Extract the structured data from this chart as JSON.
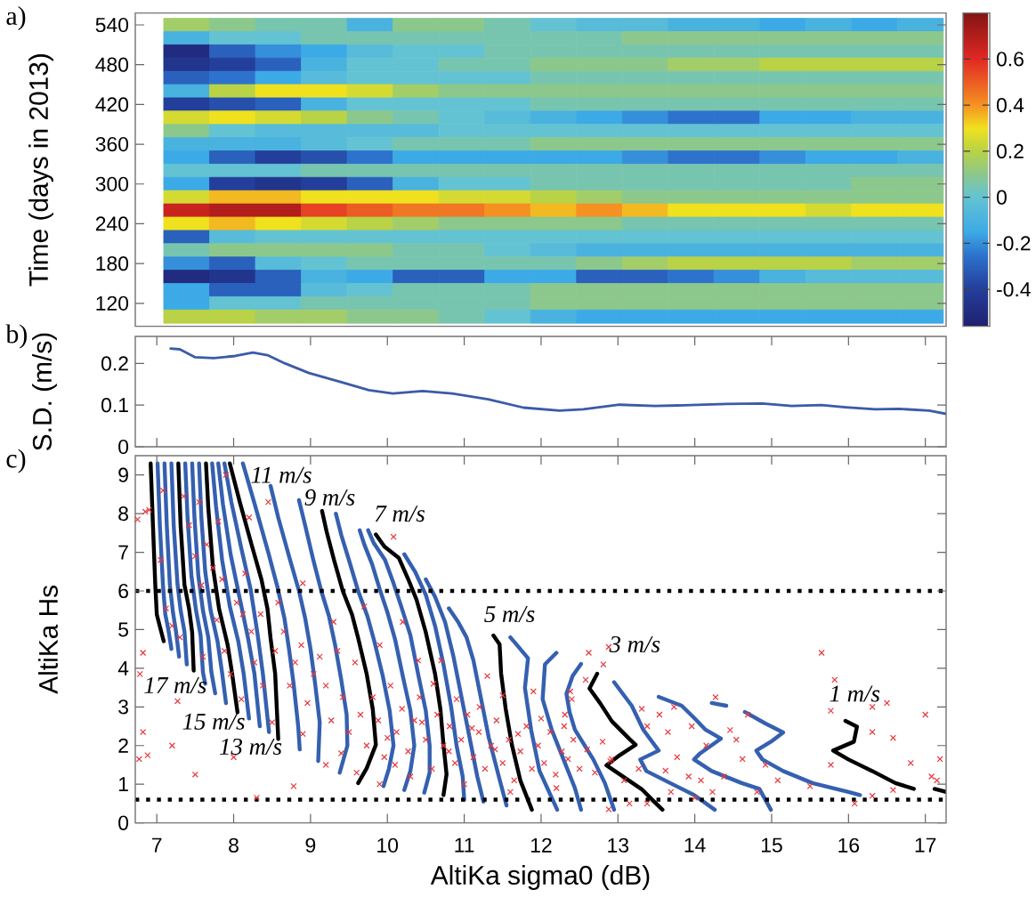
{
  "chart_data": [
    {
      "type": "heatmap",
      "ylabel": "Time (days in 2013)",
      "annotations": [
        "a)"
      ],
      "categories": [
        null,
        null,
        null,
        null,
        null,
        null,
        null,
        null,
        null,
        null,
        null,
        null,
        null,
        null,
        null,
        null,
        null
      ],
      "y_categories": [
        "540",
        null,
        null,
        "480",
        null,
        null,
        "420",
        null,
        null,
        "360",
        null,
        null,
        "300",
        null,
        null,
        "240",
        null,
        null,
        "180",
        null,
        null,
        "120",
        null
      ],
      "cells": [
        [
          0.15,
          0.1,
          0.05,
          0.05,
          -0.1,
          0.1,
          0.1,
          0.05,
          0.0,
          -0.05,
          -0.05,
          -0.1,
          -0.1,
          -0.15,
          -0.1,
          -0.15,
          -0.1
        ],
        [
          -0.1,
          0.0,
          0.0,
          0.05,
          0.05,
          0.05,
          0.05,
          0.05,
          0.05,
          0.05,
          0.1,
          0.1,
          0.1,
          0.1,
          0.1,
          0.1,
          0.1
        ],
        [
          -0.5,
          -0.3,
          -0.2,
          -0.15,
          -0.05,
          0.0,
          0.0,
          0.05,
          0.05,
          0.05,
          0.05,
          0.05,
          0.05,
          0.05,
          0.05,
          0.05,
          0.05
        ],
        [
          -0.45,
          -0.4,
          -0.3,
          -0.1,
          0.0,
          0.0,
          0.05,
          0.05,
          0.1,
          0.1,
          0.1,
          0.15,
          0.15,
          0.2,
          0.2,
          0.2,
          0.2
        ],
        [
          -0.3,
          -0.25,
          -0.15,
          -0.05,
          0.0,
          0.0,
          0.0,
          0.0,
          0.05,
          0.05,
          0.05,
          0.05,
          0.05,
          0.05,
          0.05,
          0.05,
          0.05
        ],
        [
          -0.1,
          0.2,
          0.3,
          0.3,
          0.25,
          0.15,
          0.1,
          0.1,
          0.1,
          0.1,
          0.1,
          0.1,
          0.1,
          0.1,
          0.1,
          0.1,
          0.1
        ],
        [
          -0.4,
          -0.35,
          -0.3,
          -0.1,
          0.0,
          0.0,
          0.0,
          0.0,
          0.05,
          0.05,
          0.05,
          0.05,
          0.05,
          0.05,
          0.05,
          0.05,
          0.05
        ],
        [
          0.25,
          0.3,
          0.25,
          0.2,
          0.1,
          0.05,
          0.0,
          -0.05,
          -0.1,
          -0.15,
          -0.2,
          -0.25,
          -0.25,
          -0.15,
          -0.15,
          -0.1,
          -0.1
        ],
        [
          0.1,
          0.0,
          -0.05,
          -0.05,
          -0.05,
          -0.05,
          0.0,
          0.0,
          0.0,
          0.0,
          0.0,
          0.0,
          0.0,
          0.0,
          0.0,
          0.0,
          0.0
        ],
        [
          -0.1,
          -0.1,
          -0.1,
          -0.05,
          0.0,
          0.05,
          0.05,
          0.05,
          0.1,
          0.1,
          0.1,
          0.1,
          0.1,
          0.1,
          0.1,
          0.1,
          0.1
        ],
        [
          -0.15,
          -0.3,
          -0.4,
          -0.35,
          -0.25,
          -0.15,
          -0.15,
          -0.15,
          -0.15,
          -0.15,
          -0.2,
          -0.25,
          -0.25,
          -0.2,
          -0.15,
          -0.15,
          -0.1
        ],
        [
          0.0,
          0.0,
          0.0,
          0.05,
          0.05,
          0.05,
          0.05,
          0.05,
          0.05,
          0.05,
          0.05,
          0.05,
          0.05,
          0.05,
          0.05,
          0.05,
          0.05
        ],
        [
          -0.15,
          -0.4,
          -0.45,
          -0.4,
          -0.3,
          -0.1,
          0.0,
          0.0,
          0.05,
          0.05,
          0.05,
          0.05,
          0.05,
          0.05,
          0.05,
          0.1,
          0.1
        ],
        [
          0.25,
          0.35,
          0.35,
          0.3,
          0.3,
          0.3,
          0.25,
          0.25,
          0.2,
          0.15,
          0.1,
          0.1,
          0.1,
          0.1,
          0.1,
          0.1,
          0.1
        ],
        [
          0.65,
          0.7,
          0.7,
          0.55,
          0.5,
          0.45,
          0.45,
          0.4,
          0.35,
          0.4,
          0.35,
          0.3,
          0.3,
          0.3,
          0.25,
          0.3,
          0.3
        ],
        [
          0.3,
          0.35,
          0.3,
          0.25,
          0.2,
          0.15,
          0.1,
          0.1,
          0.1,
          0.1,
          0.05,
          0.05,
          0.05,
          0.05,
          0.05,
          0.05,
          0.05
        ],
        [
          -0.3,
          -0.05,
          0.0,
          0.0,
          0.0,
          0.0,
          0.0,
          0.0,
          0.0,
          0.0,
          0.0,
          0.0,
          0.0,
          0.0,
          0.0,
          0.0,
          0.0
        ],
        [
          0.05,
          0.1,
          0.1,
          0.1,
          0.1,
          0.05,
          0.05,
          0.0,
          -0.05,
          -0.1,
          -0.1,
          -0.1,
          -0.1,
          -0.1,
          -0.1,
          -0.1,
          -0.1
        ],
        [
          -0.2,
          -0.3,
          -0.05,
          0.0,
          0.05,
          0.05,
          0.05,
          0.05,
          0.05,
          0.1,
          0.15,
          0.2,
          0.2,
          0.2,
          0.2,
          0.15,
          0.15
        ],
        [
          -0.5,
          -0.45,
          -0.3,
          -0.1,
          -0.15,
          -0.3,
          -0.3,
          -0.15,
          -0.15,
          -0.3,
          -0.3,
          -0.25,
          -0.2,
          -0.1,
          -0.05,
          -0.05,
          -0.05
        ],
        [
          -0.15,
          -0.3,
          -0.3,
          -0.05,
          0.0,
          0.05,
          0.05,
          0.05,
          0.1,
          0.1,
          0.1,
          0.1,
          0.1,
          0.1,
          0.1,
          0.1,
          0.1
        ],
        [
          -0.15,
          0.0,
          0.0,
          0.05,
          0.05,
          0.05,
          0.05,
          0.05,
          0.1,
          0.1,
          0.1,
          0.1,
          0.1,
          0.1,
          0.1,
          0.1,
          0.1
        ],
        [
          0.2,
          0.2,
          0.15,
          0.15,
          0.1,
          0.1,
          0.05,
          0.0,
          -0.1,
          -0.15,
          -0.15,
          -0.15,
          -0.15,
          -0.15,
          -0.15,
          -0.15,
          -0.15
        ]
      ],
      "clim": [
        -0.56,
        0.8
      ],
      "cticks": [
        -0.4,
        -0.2,
        0,
        0.2,
        0.4,
        0.6
      ]
    },
    {
      "type": "line",
      "ylabel": "S.D. (m/s)",
      "annotations": [
        "b)"
      ],
      "color": "#3a5ba8",
      "x": [
        7.18,
        7.3,
        7.5,
        7.74,
        8.02,
        8.25,
        8.44,
        8.67,
        8.98,
        9.37,
        9.76,
        10.07,
        10.46,
        10.84,
        11.31,
        11.77,
        12.24,
        12.55,
        13.02,
        13.48,
        13.95,
        14.41,
        14.88,
        15.26,
        15.65,
        15.96,
        16.35,
        16.66,
        17.05,
        17.27
      ],
      "values": [
        0.236,
        0.234,
        0.215,
        0.213,
        0.218,
        0.226,
        0.22,
        0.2,
        0.177,
        0.157,
        0.136,
        0.128,
        0.134,
        0.128,
        0.114,
        0.094,
        0.087,
        0.09,
        0.101,
        0.098,
        0.1,
        0.103,
        0.104,
        0.098,
        0.1,
        0.095,
        0.09,
        0.091,
        0.087,
        0.079
      ],
      "xlim": [
        6.72,
        17.27
      ],
      "ylim": [
        0,
        0.265
      ],
      "xticks": [
        7,
        8,
        9,
        10,
        11,
        12,
        13,
        14,
        15,
        16,
        17
      ],
      "yticks": [
        0,
        0.1,
        0.2
      ],
      "tick_labels": "y"
    },
    {
      "type": "line",
      "xlabel": "AltiKa sigma0 (dB)",
      "ylabel": "AltiKa Hs",
      "annotations": [
        "c)",
        "11 m/s",
        "9 m/s",
        "7 m/s",
        "5 m/s",
        "3 m/s",
        "17 m/s",
        "1 m/s",
        "15 m/s",
        "13 m/s"
      ],
      "series": [
        {
          "color": "#000000",
          "x": [
            6.92,
            6.95,
            6.98,
            7.0,
            7.04,
            7.09
          ],
          "values": [
            9.3,
            7.69,
            6.16,
            5.39,
            5.08,
            4.7
          ]
        },
        {
          "color": "#3560b0",
          "x": [
            7.01,
            7.04,
            7.08,
            7.11,
            7.15,
            7.19
          ],
          "values": [
            9.3,
            7.69,
            6.16,
            5.4,
            5.0,
            4.5
          ]
        },
        {
          "color": "#3560b0",
          "x": [
            7.1,
            7.13,
            7.17,
            7.21,
            7.25,
            7.29
          ],
          "values": [
            9.3,
            7.69,
            6.16,
            5.45,
            4.95,
            4.3
          ]
        },
        {
          "color": "#3560b0",
          "x": [
            7.19,
            7.22,
            7.27,
            7.31,
            7.36,
            7.39
          ],
          "values": [
            9.3,
            7.69,
            6.16,
            5.5,
            4.95,
            4.1
          ]
        },
        {
          "color": "#000000",
          "x": [
            7.28,
            7.31,
            7.36,
            7.42,
            7.46,
            7.48
          ],
          "values": [
            9.3,
            7.69,
            6.16,
            5.54,
            4.93,
            3.94
          ]
        },
        {
          "color": "#3560b0",
          "x": [
            7.37,
            7.4,
            7.45,
            7.51,
            7.57,
            7.6,
            7.63
          ],
          "values": [
            9.3,
            7.9,
            6.4,
            5.5,
            4.85,
            3.9,
            3.6
          ]
        },
        {
          "color": "#3560b0",
          "x": [
            7.46,
            7.49,
            7.54,
            7.6,
            7.67,
            7.71,
            7.76
          ],
          "values": [
            9.3,
            7.9,
            6.4,
            5.5,
            4.8,
            3.9,
            3.35
          ]
        },
        {
          "color": "#3560b0",
          "x": [
            7.55,
            7.58,
            7.63,
            7.7,
            7.79,
            7.85,
            7.9
          ],
          "values": [
            9.3,
            7.9,
            6.5,
            5.5,
            4.7,
            3.88,
            3.1
          ]
        },
        {
          "color": "#000000",
          "x": [
            7.64,
            7.67,
            7.73,
            7.81,
            7.92,
            7.98,
            8.05
          ],
          "values": [
            9.3,
            8.15,
            6.62,
            5.54,
            4.62,
            3.86,
            2.86
          ]
        },
        {
          "color": "#3560b0",
          "x": [
            7.72,
            7.77,
            7.85,
            7.95,
            8.06,
            8.13,
            8.2
          ],
          "values": [
            9.3,
            8.2,
            6.8,
            5.6,
            4.7,
            3.86,
            2.7
          ]
        },
        {
          "color": "#3560b0",
          "x": [
            7.8,
            7.86,
            7.96,
            8.08,
            8.19,
            8.27,
            8.34
          ],
          "values": [
            9.3,
            8.25,
            6.95,
            5.8,
            4.75,
            3.86,
            2.5
          ]
        },
        {
          "color": "#3560b0",
          "x": [
            7.88,
            7.97,
            8.1,
            8.22,
            8.31,
            8.38,
            8.46
          ],
          "values": [
            9.3,
            8.3,
            7.1,
            6.05,
            4.9,
            3.86,
            2.35
          ]
        },
        {
          "color": "#000000",
          "x": [
            7.95,
            8.08,
            8.23,
            8.36,
            8.44,
            8.48,
            8.54,
            8.58
          ],
          "values": [
            9.3,
            8.3,
            7.22,
            6.31,
            5.54,
            4.78,
            3.86,
            2.17
          ]
        },
        {
          "color": "#3560b0",
          "x": [
            8.12,
            8.28,
            8.45,
            8.57,
            8.66,
            8.72,
            8.78,
            8.84,
            8.86
          ],
          "values": [
            9.3,
            8.2,
            7.0,
            6.1,
            5.3,
            4.5,
            3.6,
            2.5,
            1.9
          ]
        },
        {
          "color": "#3560b0",
          "x": [
            8.48,
            8.58,
            8.72,
            8.85,
            8.93,
            9.0,
            9.06,
            9.12,
            9.1
          ],
          "values": [
            8.72,
            7.9,
            6.9,
            6.0,
            5.3,
            4.5,
            3.6,
            2.6,
            1.6
          ]
        },
        {
          "color": "#3560b0",
          "x": [
            8.85,
            8.93,
            9.03,
            9.14,
            9.24,
            9.32,
            9.4,
            9.47,
            9.48,
            9.38
          ],
          "values": [
            8.35,
            7.7,
            6.85,
            6.0,
            5.35,
            4.6,
            3.7,
            2.8,
            2.0,
            1.3
          ]
        },
        {
          "color": "#000000",
          "x": [
            9.15,
            9.21,
            9.31,
            9.42,
            9.54,
            9.62,
            9.73,
            9.81,
            9.85,
            9.73,
            9.62
          ],
          "values": [
            8.07,
            7.53,
            6.77,
            6.0,
            5.39,
            4.78,
            3.86,
            2.94,
            2.02,
            1.41,
            1.03
          ]
        },
        {
          "color": "#3560b0",
          "x": [
            9.33,
            9.4,
            9.5,
            9.62,
            9.74,
            9.83,
            9.94,
            10.03,
            10.08,
            10.02,
            9.95
          ],
          "values": [
            8.0,
            7.45,
            6.8,
            6.0,
            5.35,
            4.7,
            3.8,
            2.9,
            2.0,
            1.4,
            0.95
          ]
        },
        {
          "color": "#3560b0",
          "x": [
            9.64,
            9.7,
            9.8,
            9.9,
            10.0,
            10.1,
            10.2,
            10.3,
            10.35,
            10.3,
            10.22
          ],
          "values": [
            7.57,
            7.2,
            6.7,
            6.05,
            5.45,
            4.75,
            3.8,
            2.9,
            2.0,
            1.35,
            0.85
          ]
        },
        {
          "color": "#3560b0",
          "x": [
            9.75,
            9.82,
            9.97,
            10.08,
            10.18,
            10.3,
            10.4,
            10.5,
            10.55,
            10.55,
            10.48
          ],
          "values": [
            7.57,
            7.25,
            6.8,
            6.2,
            5.6,
            4.85,
            3.85,
            2.9,
            2.0,
            1.3,
            0.78
          ]
        },
        {
          "color": "#000000",
          "x": [
            9.85,
            9.96,
            10.15,
            10.27,
            10.38,
            10.5,
            10.62,
            10.69,
            10.73,
            10.77,
            10.73
          ],
          "values": [
            7.46,
            7.15,
            6.85,
            6.31,
            5.77,
            4.93,
            3.86,
            2.94,
            2.02,
            1.26,
            0.72
          ]
        },
        {
          "color": "#3560b0",
          "x": [
            10.22,
            10.36,
            10.5,
            10.62,
            10.73,
            10.83,
            10.9,
            10.98,
            11.0
          ],
          "values": [
            6.95,
            6.5,
            5.9,
            5.1,
            4.1,
            3.0,
            2.0,
            1.2,
            0.6
          ]
        },
        {
          "color": "#3560b0",
          "x": [
            10.5,
            10.62,
            10.75,
            10.86,
            10.97,
            11.07,
            11.17,
            11.25
          ],
          "values": [
            6.3,
            5.85,
            5.2,
            4.3,
            3.2,
            2.2,
            1.2,
            0.55
          ]
        },
        {
          "color": "#3560b0",
          "x": [
            10.8,
            10.92,
            11.03,
            11.12,
            11.22,
            11.32,
            11.45,
            11.55
          ],
          "values": [
            5.55,
            5.2,
            4.8,
            4.2,
            3.2,
            2.2,
            1.2,
            0.45
          ]
        },
        {
          "color": "#000000",
          "x": [
            11.38,
            11.46,
            11.48,
            11.54,
            11.62,
            11.73,
            11.88
          ],
          "values": [
            4.85,
            4.62,
            3.86,
            2.94,
            2.02,
            1.1,
            0.34
          ]
        },
        {
          "color": "#3560b0",
          "x": [
            11.6,
            11.67,
            11.83,
            11.79,
            11.87,
            11.98,
            12.21
          ],
          "values": [
            4.8,
            4.64,
            4.26,
            3.49,
            2.41,
            1.34,
            0.34
          ]
        },
        {
          "color": "#3560b0",
          "x": [
            12.2,
            12.05,
            12.02,
            12.14,
            12.29,
            12.44,
            12.52
          ],
          "values": [
            4.4,
            4.1,
            3.2,
            2.4,
            1.65,
            0.9,
            0.34
          ]
        },
        {
          "color": "#3560b0",
          "x": [
            12.52,
            12.41,
            12.33,
            12.37,
            12.44,
            12.68,
            12.83,
            12.95
          ],
          "values": [
            4.11,
            3.8,
            3.34,
            2.87,
            2.41,
            1.64,
            1.03,
            0.34
          ]
        },
        {
          "color": "#000000",
          "x": [
            12.73,
            12.63,
            12.77,
            12.92,
            13.15,
            13.23,
            13.0,
            12.85,
            13.08,
            13.31,
            13.46,
            13.58
          ],
          "values": [
            3.86,
            3.48,
            3.09,
            2.63,
            2.17,
            2.02,
            1.72,
            1.49,
            1.18,
            0.87,
            0.57,
            0.34
          ]
        },
        {
          "color": "#3560b0",
          "x": [
            12.95,
            13.18,
            13.33,
            13.53,
            13.29,
            13.37,
            13.68,
            13.99,
            14.26
          ],
          "values": [
            3.64,
            3.03,
            2.41,
            1.87,
            1.64,
            1.34,
            1.03,
            0.72,
            0.34
          ]
        },
        {
          "color": "#3560b0",
          "x": [
            13.53,
            13.83,
            13.99,
            14.14,
            14.34,
            14.07,
            13.99,
            14.22,
            14.61,
            14.84,
            14.99
          ],
          "values": [
            3.26,
            3.03,
            2.72,
            2.41,
            2.18,
            1.8,
            1.64,
            1.34,
            1.03,
            0.88,
            0.34
          ]
        },
        {
          "color": "#3560b0",
          "x": [
            14.22,
            14.41,
            14.5,
            14.65,
            14.92,
            15.15,
            14.99,
            14.8,
            14.88,
            15.15,
            15.53,
            16.0,
            16.15
          ],
          "values": [
            3.1,
            3.03,
            null,
            2.87,
            2.57,
            2.34,
            2.1,
            1.87,
            1.64,
            1.34,
            1.03,
            0.8,
            0.72
          ]
        },
        {
          "color": "#000000",
          "x": [
            15.96,
            16.11,
            16.07,
            15.8,
            16.0,
            16.31,
            16.61,
            16.85
          ],
          "values": [
            2.64,
            2.49,
            2.1,
            1.87,
            1.64,
            1.34,
            1.03,
            0.88
          ]
        },
        {
          "color": "#000000",
          "x": [
            17.12,
            17.27
          ],
          "values": [
            0.88,
            0.8
          ]
        },
        {
          "type": "scatter",
          "color": "#e8383d",
          "marker": "cross",
          "x": [
            6.75,
            6.85,
            6.9,
            6.82,
            6.78,
            6.82,
            6.77,
            6.88,
            7.2,
            7.5,
            7.27,
            8.0,
            8.3,
            8.78,
            10.08,
            7.08,
            7.55,
            7.9,
            8.45,
            8.2,
            7.05,
            7.12,
            7.2,
            7.35,
            7.42,
            7.5,
            7.58,
            7.65,
            7.73,
            7.78,
            7.85,
            7.88,
            7.96,
            8.04,
            8.12,
            8.15,
            8.23,
            8.27,
            8.35,
            8.38,
            8.54,
            8.58,
            8.65,
            8.73,
            8.8,
            8.88,
            8.96,
            9.04,
            9.12,
            9.2,
            9.35,
            9.42,
            9.58,
            9.3,
            8.9,
            9.7,
            10.2,
            9.9,
            10.4,
            7.3,
            7.6,
            8.1,
            8.5,
            8.9,
            7.8,
            9.27,
            9.5,
            9.65,
            9.73,
            9.81,
            9.88,
            9.96,
            10.04,
            10.12,
            10.19,
            10.27,
            10.35,
            10.42,
            10.5,
            10.58,
            10.65,
            10.73,
            10.81,
            10.88,
            10.96,
            11.04,
            11.12,
            11.19,
            11.27,
            11.35,
            11.42,
            11.5,
            11.58,
            11.65,
            11.73,
            11.81,
            11.88,
            11.96,
            12.04,
            12.12,
            12.19,
            12.27,
            12.35,
            12.42,
            12.5,
            9.6,
            9.9,
            10.3,
            10.6,
            10.9,
            11.2,
            11.5,
            11.0,
            10.0,
            10.45,
            10.8,
            11.1,
            11.4,
            11.7,
            12.0,
            12.3,
            12.6,
            12.7,
            12.2,
            11.9,
            11.3,
            10.7,
            9.4,
            9.2,
            10.1,
            11.6,
            12.4,
            12.8,
            12.9,
            12.62,
            12.81,
            12.88,
            12.58,
            12.38,
            12.31,
            13.31,
            13.38,
            13.54,
            13.65,
            13.73,
            13.96,
            14.15,
            13.77,
            13.62,
            13.27,
            12.92,
            13.08,
            13.38,
            13.15,
            12.88,
            13.69,
            13.92,
            14.08,
            14.0,
            14.23,
            14.38,
            14.27,
            14.69,
            14.46,
            14.54,
            14.62,
            14.92,
            15.08,
            14.81,
            15.5,
            15.77,
            15.65,
            15.82,
            15.77,
            16.31,
            16.5,
            17.0,
            16.58,
            16.31,
            16.81,
            17.19,
            17.08,
            17.15,
            16.31,
            16.08,
            16.58
          ],
          "values": [
            7.85,
            8.05,
            8.1,
            4.4,
            3.85,
            2.35,
            1.65,
            1.75,
            2.0,
            1.25,
            3.15,
            1.7,
            0.65,
            0.95,
            7.4,
            8.6,
            8.3,
            9.0,
            8.3,
            7.9,
            6.8,
            5.55,
            5.1,
            8.45,
            7.7,
            6.9,
            6.15,
            7.2,
            6.6,
            5.25,
            6.3,
            4.45,
            3.85,
            5.7,
            5.4,
            6.45,
            4.95,
            4.15,
            5.4,
            3.55,
            4.45,
            5.7,
            4.95,
            3.55,
            4.15,
            4.6,
            3.1,
            3.85,
            4.3,
            3.55,
            4.45,
            3.25,
            4.15,
            5.2,
            6.2,
            5.6,
            5.2,
            4.6,
            4.2,
            4.8,
            4.3,
            3.2,
            2.6,
            2.3,
            7.8,
            2.65,
            2.35,
            2.8,
            2.0,
            3.25,
            2.65,
            1.7,
            3.55,
            2.35,
            2.95,
            1.85,
            2.65,
            3.25,
            2.15,
            1.4,
            2.8,
            2.0,
            2.5,
            1.55,
            2.15,
            2.8,
            1.7,
            2.35,
            1.4,
            2.0,
            2.65,
            1.55,
            2.15,
            1.1,
            1.85,
            2.5,
            1.4,
            2.0,
            1.55,
            2.35,
            1.25,
            1.85,
            1.65,
            2.15,
            1.4,
            1.3,
            1.0,
            1.2,
            3.6,
            3.2,
            3.0,
            3.3,
            1.0,
            2.2,
            2.6,
            1.85,
            2.45,
            1.9,
            2.3,
            2.7,
            2.5,
            1.9,
            1.3,
            0.9,
            3.4,
            3.8,
            4.2,
            1.8,
            1.5,
            1.5,
            0.8,
            3.2,
            2.1,
            1.6,
            4.4,
            4.1,
            4.55,
            3.7,
            3.4,
            2.8,
            2.95,
            2.5,
            2.8,
            2.35,
            3.0,
            2.5,
            2.0,
            1.7,
            1.35,
            1.4,
            1.65,
            1.1,
            0.5,
            0.5,
            0.35,
            0.8,
            1.2,
            1.1,
            0.65,
            0.8,
            1.2,
            3.25,
            2.8,
            2.4,
            2.15,
            1.65,
            1.5,
            1.1,
            0.8,
            0.95,
            1.5,
            4.4,
            3.7,
            2.9,
            3.0,
            3.1,
            2.8,
            2.2,
            2.35,
            1.55,
            1.65,
            1.2,
            1.1,
            0.7,
            0.5,
            0.85
          ]
        }
      ],
      "ref_lines": [
        {
          "axis": "y",
          "value": 6,
          "line_style": "dotted",
          "color": "#000000"
        },
        {
          "axis": "y",
          "value": 0.6,
          "line_style": "dotted",
          "color": "#000000"
        }
      ],
      "xlim": [
        6.72,
        17.27
      ],
      "ylim": [
        0,
        9.5
      ],
      "xticks": [
        7,
        8,
        9,
        10,
        11,
        12,
        13,
        14,
        15,
        16,
        17
      ],
      "yticks": [
        0,
        1,
        2,
        3,
        4,
        5,
        6,
        7,
        8,
        9
      ]
    }
  ]
}
